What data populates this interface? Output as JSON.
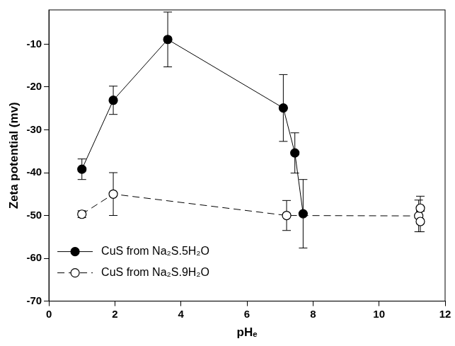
{
  "chart_data": {
    "type": "line",
    "x_label": "pHₑ",
    "y_label": "Zeta potential (mv)",
    "xlim": [
      0,
      12
    ],
    "xticks": [
      0,
      2,
      4,
      6,
      8,
      10,
      12
    ],
    "ylim": [
      -70,
      -2
    ],
    "yticks": [
      -70,
      -60,
      -50,
      -40,
      -30,
      -20,
      -10
    ],
    "grid": false,
    "legend": "lower left",
    "series": [
      {
        "name": "CuS from Na₂S.5H₂O",
        "color": "#000000",
        "marker": "filled_circle",
        "line_style": "solid",
        "x": [
          1.0,
          1.95,
          3.6,
          7.1,
          7.45,
          7.7
        ],
        "values": [
          -39.2,
          -23.1,
          -8.9,
          -24.9,
          -35.4,
          -49.6
        ],
        "errors": [
          2.4,
          3.3,
          6.4,
          7.8,
          4.7,
          8.0
        ]
      },
      {
        "name": "CuS from Na₂S.9H₂O",
        "color": "#000000",
        "marker": "open_circle",
        "line_style": "dashed",
        "x": [
          1.0,
          1.95,
          7.2,
          11.2,
          11.25,
          11.25
        ],
        "values": [
          -49.7,
          -45.0,
          -50.0,
          -50.1,
          -48.3,
          -51.4
        ],
        "errors": [
          0.8,
          5.0,
          3.5,
          3.7,
          2.8,
          2.4
        ]
      }
    ]
  }
}
